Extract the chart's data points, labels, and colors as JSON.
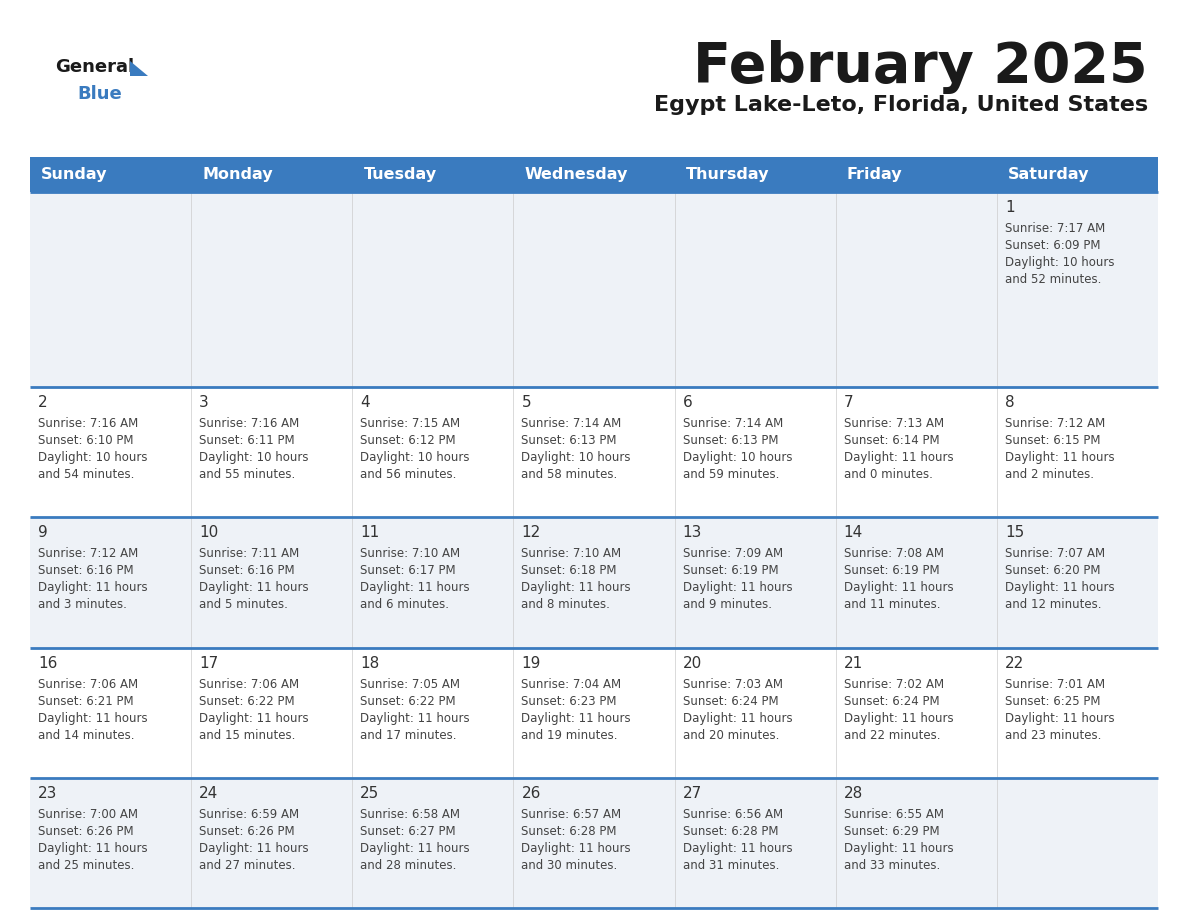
{
  "title": "February 2025",
  "subtitle": "Egypt Lake-Leto, Florida, United States",
  "days_of_week": [
    "Sunday",
    "Monday",
    "Tuesday",
    "Wednesday",
    "Thursday",
    "Friday",
    "Saturday"
  ],
  "header_bg": "#3a7bbf",
  "header_text": "#ffffff",
  "row_bg_odd": "#eef2f7",
  "row_bg_even": "#ffffff",
  "cell_border_color": "#3a7bbf",
  "day_num_color": "#333333",
  "info_text_color": "#444444",
  "title_color": "#1a1a1a",
  "subtitle_color": "#1a1a1a",
  "logo_general_color": "#1a1a1a",
  "logo_blue_color": "#3a7bbf",
  "logo_triangle_color": "#3a7bbf",
  "calendar_data": [
    [
      {
        "day": null,
        "sunrise": null,
        "sunset": null,
        "daylight_line1": null,
        "daylight_line2": null
      },
      {
        "day": null,
        "sunrise": null,
        "sunset": null,
        "daylight_line1": null,
        "daylight_line2": null
      },
      {
        "day": null,
        "sunrise": null,
        "sunset": null,
        "daylight_line1": null,
        "daylight_line2": null
      },
      {
        "day": null,
        "sunrise": null,
        "sunset": null,
        "daylight_line1": null,
        "daylight_line2": null
      },
      {
        "day": null,
        "sunrise": null,
        "sunset": null,
        "daylight_line1": null,
        "daylight_line2": null
      },
      {
        "day": null,
        "sunrise": null,
        "sunset": null,
        "daylight_line1": null,
        "daylight_line2": null
      },
      {
        "day": 1,
        "sunrise": "7:17 AM",
        "sunset": "6:09 PM",
        "daylight_line1": "Daylight: 10 hours",
        "daylight_line2": "and 52 minutes."
      }
    ],
    [
      {
        "day": 2,
        "sunrise": "7:16 AM",
        "sunset": "6:10 PM",
        "daylight_line1": "Daylight: 10 hours",
        "daylight_line2": "and 54 minutes."
      },
      {
        "day": 3,
        "sunrise": "7:16 AM",
        "sunset": "6:11 PM",
        "daylight_line1": "Daylight: 10 hours",
        "daylight_line2": "and 55 minutes."
      },
      {
        "day": 4,
        "sunrise": "7:15 AM",
        "sunset": "6:12 PM",
        "daylight_line1": "Daylight: 10 hours",
        "daylight_line2": "and 56 minutes."
      },
      {
        "day": 5,
        "sunrise": "7:14 AM",
        "sunset": "6:13 PM",
        "daylight_line1": "Daylight: 10 hours",
        "daylight_line2": "and 58 minutes."
      },
      {
        "day": 6,
        "sunrise": "7:14 AM",
        "sunset": "6:13 PM",
        "daylight_line1": "Daylight: 10 hours",
        "daylight_line2": "and 59 minutes."
      },
      {
        "day": 7,
        "sunrise": "7:13 AM",
        "sunset": "6:14 PM",
        "daylight_line1": "Daylight: 11 hours",
        "daylight_line2": "and 0 minutes."
      },
      {
        "day": 8,
        "sunrise": "7:12 AM",
        "sunset": "6:15 PM",
        "daylight_line1": "Daylight: 11 hours",
        "daylight_line2": "and 2 minutes."
      }
    ],
    [
      {
        "day": 9,
        "sunrise": "7:12 AM",
        "sunset": "6:16 PM",
        "daylight_line1": "Daylight: 11 hours",
        "daylight_line2": "and 3 minutes."
      },
      {
        "day": 10,
        "sunrise": "7:11 AM",
        "sunset": "6:16 PM",
        "daylight_line1": "Daylight: 11 hours",
        "daylight_line2": "and 5 minutes."
      },
      {
        "day": 11,
        "sunrise": "7:10 AM",
        "sunset": "6:17 PM",
        "daylight_line1": "Daylight: 11 hours",
        "daylight_line2": "and 6 minutes."
      },
      {
        "day": 12,
        "sunrise": "7:10 AM",
        "sunset": "6:18 PM",
        "daylight_line1": "Daylight: 11 hours",
        "daylight_line2": "and 8 minutes."
      },
      {
        "day": 13,
        "sunrise": "7:09 AM",
        "sunset": "6:19 PM",
        "daylight_line1": "Daylight: 11 hours",
        "daylight_line2": "and 9 minutes."
      },
      {
        "day": 14,
        "sunrise": "7:08 AM",
        "sunset": "6:19 PM",
        "daylight_line1": "Daylight: 11 hours",
        "daylight_line2": "and 11 minutes."
      },
      {
        "day": 15,
        "sunrise": "7:07 AM",
        "sunset": "6:20 PM",
        "daylight_line1": "Daylight: 11 hours",
        "daylight_line2": "and 12 minutes."
      }
    ],
    [
      {
        "day": 16,
        "sunrise": "7:06 AM",
        "sunset": "6:21 PM",
        "daylight_line1": "Daylight: 11 hours",
        "daylight_line2": "and 14 minutes."
      },
      {
        "day": 17,
        "sunrise": "7:06 AM",
        "sunset": "6:22 PM",
        "daylight_line1": "Daylight: 11 hours",
        "daylight_line2": "and 15 minutes."
      },
      {
        "day": 18,
        "sunrise": "7:05 AM",
        "sunset": "6:22 PM",
        "daylight_line1": "Daylight: 11 hours",
        "daylight_line2": "and 17 minutes."
      },
      {
        "day": 19,
        "sunrise": "7:04 AM",
        "sunset": "6:23 PM",
        "daylight_line1": "Daylight: 11 hours",
        "daylight_line2": "and 19 minutes."
      },
      {
        "day": 20,
        "sunrise": "7:03 AM",
        "sunset": "6:24 PM",
        "daylight_line1": "Daylight: 11 hours",
        "daylight_line2": "and 20 minutes."
      },
      {
        "day": 21,
        "sunrise": "7:02 AM",
        "sunset": "6:24 PM",
        "daylight_line1": "Daylight: 11 hours",
        "daylight_line2": "and 22 minutes."
      },
      {
        "day": 22,
        "sunrise": "7:01 AM",
        "sunset": "6:25 PM",
        "daylight_line1": "Daylight: 11 hours",
        "daylight_line2": "and 23 minutes."
      }
    ],
    [
      {
        "day": 23,
        "sunrise": "7:00 AM",
        "sunset": "6:26 PM",
        "daylight_line1": "Daylight: 11 hours",
        "daylight_line2": "and 25 minutes."
      },
      {
        "day": 24,
        "sunrise": "6:59 AM",
        "sunset": "6:26 PM",
        "daylight_line1": "Daylight: 11 hours",
        "daylight_line2": "and 27 minutes."
      },
      {
        "day": 25,
        "sunrise": "6:58 AM",
        "sunset": "6:27 PM",
        "daylight_line1": "Daylight: 11 hours",
        "daylight_line2": "and 28 minutes."
      },
      {
        "day": 26,
        "sunrise": "6:57 AM",
        "sunset": "6:28 PM",
        "daylight_line1": "Daylight: 11 hours",
        "daylight_line2": "and 30 minutes."
      },
      {
        "day": 27,
        "sunrise": "6:56 AM",
        "sunset": "6:28 PM",
        "daylight_line1": "Daylight: 11 hours",
        "daylight_line2": "and 31 minutes."
      },
      {
        "day": 28,
        "sunrise": "6:55 AM",
        "sunset": "6:29 PM",
        "daylight_line1": "Daylight: 11 hours",
        "daylight_line2": "and 33 minutes."
      },
      {
        "day": null,
        "sunrise": null,
        "sunset": null,
        "daylight_line1": null,
        "daylight_line2": null
      }
    ]
  ]
}
